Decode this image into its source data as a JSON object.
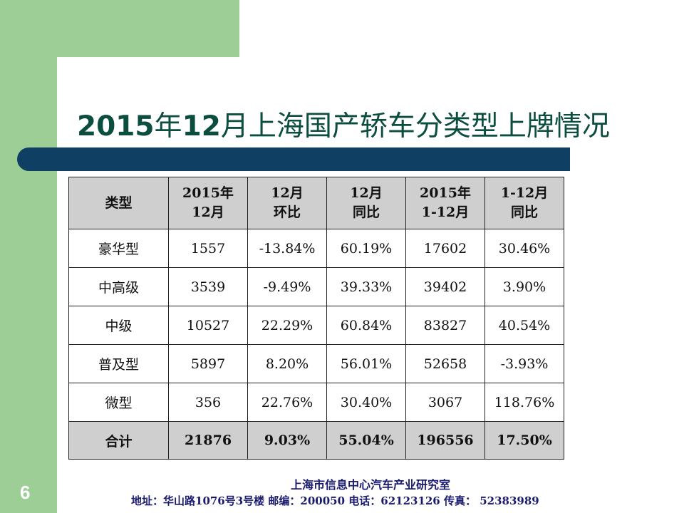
{
  "slide": {
    "title_year": "2015",
    "title_year_suffix": "年",
    "title_month": "12",
    "title_rest": "月上海国产轿车分类型上牌情况",
    "page_number": "6"
  },
  "table": {
    "headers": [
      [
        "类型",
        ""
      ],
      [
        "2015年",
        "12月"
      ],
      [
        "12月",
        "环比"
      ],
      [
        "12月",
        "同比"
      ],
      [
        "2015年",
        "1-12月"
      ],
      [
        "1-12月",
        "同比"
      ]
    ],
    "rows": [
      [
        "豪华型",
        "1557",
        "-13.84%",
        "60.19%",
        "17602",
        "30.46%"
      ],
      [
        "中高级",
        "3539",
        "-9.49%",
        "39.33%",
        "39402",
        "3.90%"
      ],
      [
        "中级",
        "10527",
        "22.29%",
        "60.84%",
        "83827",
        "40.54%"
      ],
      [
        "普及型",
        "5897",
        "8.20%",
        "56.01%",
        "52658",
        "-3.93%"
      ],
      [
        "微型",
        "356",
        "22.76%",
        "30.40%",
        "3067",
        "118.76%"
      ]
    ],
    "total": [
      "合计",
      "21876",
      "9.03%",
      "55.04%",
      "196556",
      "17.50%"
    ]
  },
  "footer": {
    "org": "上海市信息中心汽车产业研究室",
    "contact": "地址：华山路1076号3号楼   邮编：200050  电话：62123126  传真：  52383989"
  },
  "colors": {
    "accent_green": "#9cce96",
    "rule_navy": "#0f3f62",
    "title_text": "#0b4d3e",
    "header_fill": "#cfcfcf"
  }
}
